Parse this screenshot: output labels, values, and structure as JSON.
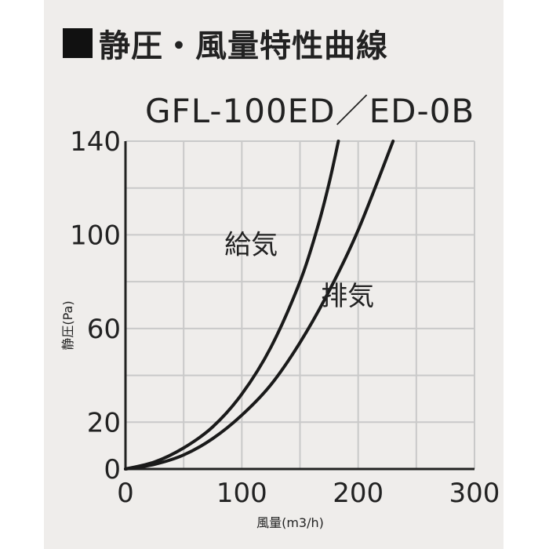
{
  "title": "静圧・風量特性曲線",
  "model": "GFL-100ED／ED-0B",
  "colors": {
    "grid": "#c9c9c9",
    "axis": "#222222",
    "line": "#1a1a1a",
    "panel": "#efedeb"
  },
  "chart_data": {
    "type": "line",
    "title": "静圧・風量特性曲線",
    "subtitle": "GFL-100ED／ED-0B",
    "xlabel": "風量(m3/h)",
    "ylabel": "静圧(Pa)",
    "xlim": [
      0,
      300
    ],
    "ylim": [
      0,
      140
    ],
    "x_ticks": [
      0,
      100,
      200,
      300
    ],
    "y_ticks": [
      0,
      20,
      60,
      100,
      140
    ],
    "grid": true,
    "series": [
      {
        "name": "給気",
        "points": [
          [
            0,
            0
          ],
          [
            25,
            3
          ],
          [
            50,
            9
          ],
          [
            75,
            18
          ],
          [
            100,
            32
          ],
          [
            125,
            52
          ],
          [
            150,
            80
          ],
          [
            165,
            103
          ],
          [
            175,
            122
          ],
          [
            183,
            140
          ]
        ]
      },
      {
        "name": "排気",
        "points": [
          [
            0,
            0
          ],
          [
            25,
            2
          ],
          [
            50,
            6
          ],
          [
            75,
            13
          ],
          [
            100,
            23
          ],
          [
            125,
            36
          ],
          [
            150,
            54
          ],
          [
            175,
            76
          ],
          [
            200,
            102
          ],
          [
            230,
            140
          ]
        ]
      }
    ]
  }
}
